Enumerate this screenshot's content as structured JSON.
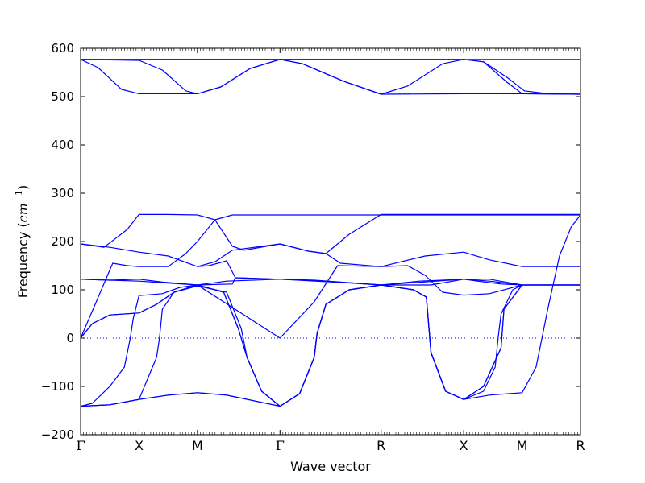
{
  "chart_data": {
    "type": "line",
    "title": "",
    "xlabel": "Wave vector",
    "ylabel": "Frequency",
    "ylabel_unit": "cm",
    "ylabel_unit_exponent": "−1",
    "ylim": [
      -200,
      600
    ],
    "yticks": [
      -200,
      -100,
      0,
      100,
      200,
      300,
      400,
      500,
      600
    ],
    "ytick_labels": [
      "−200",
      "−100",
      "0",
      "100",
      "200",
      "300",
      "400",
      "500",
      "600"
    ],
    "grid": false,
    "legend": "none",
    "line_color": "#0000ff",
    "zero_line": {
      "y": 0,
      "style": "dotted",
      "color": "#0000ff"
    },
    "kpoints": [
      {
        "label": "Γ",
        "x": 0
      },
      {
        "label": "X",
        "x": 1
      },
      {
        "label": "M",
        "x": 2
      },
      {
        "label": "Γ",
        "x": 3.4142
      },
      {
        "label": "R",
        "x": 5.1463
      },
      {
        "label": "X",
        "x": 6.5605
      },
      {
        "label": "M",
        "x": 7.5605
      },
      {
        "label": "R",
        "x": 8.5605
      }
    ],
    "series": [
      {
        "values": [
          [
            0,
            577
          ],
          [
            0.1,
            577
          ],
          [
            1,
            577
          ],
          [
            1.5,
            577
          ],
          [
            2,
            577
          ],
          [
            2.5,
            577
          ],
          [
            3.4142,
            577
          ],
          [
            4.2,
            577
          ],
          [
            5.1463,
            577
          ],
          [
            6,
            577
          ],
          [
            6.5605,
            577
          ],
          [
            7.5605,
            577
          ],
          [
            8.5605,
            577
          ]
        ]
      },
      {
        "values": [
          [
            0,
            577
          ],
          [
            0.3,
            560
          ],
          [
            0.7,
            515
          ],
          [
            1,
            506
          ],
          [
            1.5,
            506
          ],
          [
            2,
            506
          ],
          [
            2.4,
            520
          ],
          [
            2.9,
            558
          ],
          [
            3.4142,
            577
          ],
          [
            3.8,
            568
          ],
          [
            4.5,
            532
          ],
          [
            5.1463,
            505
          ],
          [
            5.6,
            522
          ],
          [
            6.2,
            568
          ],
          [
            6.5605,
            577
          ],
          [
            6.9,
            572
          ],
          [
            7.3,
            530
          ],
          [
            7.5605,
            506
          ],
          [
            8.5605,
            505
          ]
        ]
      },
      {
        "values": [
          [
            0,
            577
          ],
          [
            1,
            575
          ],
          [
            1.4,
            555
          ],
          [
            1.8,
            512
          ],
          [
            2,
            506
          ],
          [
            2.4,
            520
          ],
          [
            2.9,
            558
          ],
          [
            3.4142,
            577
          ],
          [
            3.8,
            568
          ],
          [
            4.5,
            532
          ],
          [
            5.1463,
            505
          ],
          [
            6.5605,
            506
          ],
          [
            7.5605,
            506
          ],
          [
            8.5605,
            505
          ]
        ]
      },
      {
        "values": [
          [
            0,
            577
          ],
          [
            0.1,
            577
          ],
          [
            1,
            577
          ],
          [
            1.5,
            577
          ],
          [
            2,
            577
          ],
          [
            2.5,
            577
          ],
          [
            3.4142,
            577
          ],
          [
            4.2,
            577
          ],
          [
            5.1463,
            577
          ],
          [
            6,
            577
          ],
          [
            6.5605,
            577
          ],
          [
            6.9,
            572
          ],
          [
            7.3,
            540
          ],
          [
            7.6,
            512
          ],
          [
            8,
            506
          ],
          [
            8.5605,
            505
          ]
        ]
      },
      {
        "values": [
          [
            0,
            0
          ],
          [
            0.25,
            70
          ],
          [
            0.55,
            155
          ],
          [
            0.8,
            150
          ],
          [
            1,
            148
          ],
          [
            1.5,
            148
          ],
          [
            1.8,
            175
          ],
          [
            2,
            200
          ],
          [
            2.3,
            245
          ],
          [
            2.6,
            255
          ],
          [
            3.4142,
            255
          ],
          [
            4.0,
            255
          ],
          [
            5.1463,
            255
          ],
          [
            6.5605,
            255
          ],
          [
            7.5605,
            255
          ],
          [
            8.5605,
            255
          ]
        ]
      },
      {
        "values": [
          [
            0,
            195
          ],
          [
            0.4,
            188
          ],
          [
            0.8,
            225
          ],
          [
            1,
            256
          ],
          [
            1.5,
            256
          ],
          [
            2,
            255
          ]
        ]
      },
      {
        "values": [
          [
            2,
            255
          ],
          [
            2.3,
            245
          ],
          [
            2.6,
            190
          ],
          [
            2.8,
            182
          ],
          [
            3.4142,
            195
          ],
          [
            3.9,
            180
          ],
          [
            4.2,
            175
          ],
          [
            4.6,
            215
          ],
          [
            5.1463,
            256
          ],
          [
            6.5605,
            256
          ],
          [
            7.5605,
            256
          ],
          [
            8.5605,
            256
          ]
        ]
      },
      {
        "values": [
          [
            0,
            195
          ],
          [
            0.5,
            188
          ],
          [
            1,
            178
          ],
          [
            1.5,
            170
          ],
          [
            2,
            148
          ],
          [
            2.3,
            158
          ],
          [
            2.6,
            182
          ],
          [
            3.4142,
            195
          ],
          [
            3.9,
            180
          ],
          [
            4.2,
            175
          ],
          [
            4.45,
            155
          ],
          [
            5.1463,
            148
          ],
          [
            5.9,
            170
          ],
          [
            6.5605,
            178
          ],
          [
            7.0,
            162
          ],
          [
            7.5605,
            148
          ],
          [
            8.5605,
            148
          ]
        ]
      },
      {
        "values": [
          [
            2,
            148
          ],
          [
            2.2,
            150
          ],
          [
            2.5,
            160
          ],
          [
            2.65,
            125
          ],
          [
            3.4142,
            122
          ],
          [
            4.5,
            115
          ],
          [
            5.1463,
            110
          ],
          [
            6.5605,
            122
          ],
          [
            7.0,
            122
          ],
          [
            7.5605,
            110
          ],
          [
            8.5605,
            110
          ]
        ]
      },
      {
        "values": [
          [
            0,
            122
          ],
          [
            0.5,
            120
          ],
          [
            1,
            118
          ],
          [
            1.5,
            114
          ],
          [
            2,
            110
          ],
          [
            2.5,
            118
          ],
          [
            3.4142,
            122
          ],
          [
            4.2,
            118
          ],
          [
            5.1463,
            110
          ],
          [
            5.8,
            118
          ],
          [
            6.5605,
            122
          ],
          [
            7.0,
            118
          ],
          [
            7.5605,
            110
          ],
          [
            8.5605,
            110
          ]
        ]
      },
      {
        "values": [
          [
            0,
            122
          ],
          [
            0.5,
            120
          ],
          [
            1,
            122
          ],
          [
            1.4,
            116
          ],
          [
            2,
            110
          ],
          [
            2.6,
            112
          ],
          [
            2.65,
            125
          ],
          [
            3.4142,
            122
          ],
          [
            4.0,
            120
          ],
          [
            5.1463,
            110
          ],
          [
            6.0,
            110
          ],
          [
            6.5605,
            122
          ],
          [
            6.8,
            118
          ],
          [
            7.2,
            112
          ],
          [
            7.5605,
            110
          ],
          [
            8.5605,
            110
          ]
        ]
      },
      {
        "values": [
          [
            0,
            0
          ],
          [
            0.2,
            30
          ],
          [
            0.5,
            48
          ],
          [
            1,
            52
          ],
          [
            1.3,
            70
          ],
          [
            1.6,
            95
          ],
          [
            2,
            110
          ],
          [
            3.4142,
            0
          ],
          [
            4.0,
            75
          ],
          [
            4.4,
            150
          ],
          [
            5.1463,
            148
          ],
          [
            5.6,
            150
          ],
          [
            5.9,
            130
          ],
          [
            6.2,
            95
          ],
          [
            6.5605,
            89
          ],
          [
            7.0,
            92
          ],
          [
            7.5605,
            110
          ],
          [
            8.5605,
            110
          ]
        ]
      },
      {
        "values": [
          [
            0,
            0
          ],
          [
            0.2,
            30
          ],
          [
            0.5,
            48
          ],
          [
            1,
            52
          ],
          [
            1.3,
            70
          ],
          [
            1.6,
            95
          ],
          [
            2,
            110
          ],
          [
            2.45,
            95
          ],
          [
            2.7,
            20
          ],
          [
            2.85,
            -40
          ],
          [
            3.1,
            -110
          ],
          [
            3.4142,
            -141
          ],
          [
            3.75,
            -115
          ],
          [
            4.0,
            -40
          ],
          [
            4.05,
            10
          ],
          [
            4.2,
            70
          ],
          [
            4.6,
            100
          ],
          [
            5.1463,
            110
          ],
          [
            5.7,
            100
          ],
          [
            5.92,
            85
          ],
          [
            6.0,
            -30
          ],
          [
            6.25,
            -110
          ],
          [
            6.5605,
            -127
          ],
          [
            6.9,
            -100
          ],
          [
            7.2,
            -20
          ],
          [
            7.25,
            60
          ],
          [
            7.5605,
            110
          ]
        ]
      },
      {
        "values": [
          [
            0,
            -141
          ],
          [
            0.2,
            -135
          ],
          [
            0.5,
            -100
          ],
          [
            0.75,
            -60
          ],
          [
            0.85,
            0
          ],
          [
            0.9,
            40
          ],
          [
            1,
            88
          ],
          [
            1.4,
            92
          ],
          [
            1.7,
            105
          ],
          [
            2,
            110
          ],
          [
            2.45,
            95
          ],
          [
            2.7,
            20
          ],
          [
            2.85,
            -40
          ],
          [
            3.1,
            -110
          ],
          [
            3.4142,
            -141
          ],
          [
            3.75,
            -115
          ],
          [
            4.0,
            -40
          ],
          [
            4.05,
            10
          ],
          [
            4.2,
            70
          ],
          [
            4.6,
            100
          ],
          [
            5.1463,
            110
          ],
          [
            5.7,
            100
          ],
          [
            5.92,
            85
          ],
          [
            6.0,
            -30
          ],
          [
            6.25,
            -110
          ],
          [
            6.5605,
            -127
          ],
          [
            6.9,
            -100
          ],
          [
            7.2,
            -20
          ],
          [
            7.25,
            60
          ],
          [
            7.5605,
            110
          ]
        ]
      },
      {
        "values": [
          [
            0,
            -141
          ],
          [
            0.5,
            -138
          ],
          [
            1,
            -127
          ],
          [
            1.3,
            -40
          ],
          [
            1.35,
            0
          ],
          [
            1.4,
            60
          ],
          [
            1.6,
            95
          ],
          [
            2,
            108
          ],
          [
            2.5,
            95
          ],
          [
            2.75,
            20
          ],
          [
            2.85,
            -40
          ],
          [
            3.1,
            -110
          ],
          [
            3.4142,
            -141
          ],
          [
            3.75,
            -115
          ],
          [
            4.0,
            -40
          ],
          [
            4.05,
            10
          ],
          [
            4.2,
            70
          ],
          [
            4.6,
            100
          ],
          [
            5.1463,
            110
          ],
          [
            5.7,
            100
          ],
          [
            5.92,
            85
          ],
          [
            6.0,
            -30
          ],
          [
            6.25,
            -110
          ],
          [
            6.5605,
            -127
          ],
          [
            6.9,
            -110
          ],
          [
            7.1,
            -60
          ],
          [
            7.15,
            0
          ],
          [
            7.2,
            50
          ],
          [
            7.4,
            100
          ],
          [
            7.5605,
            110
          ]
        ]
      },
      {
        "values": [
          [
            0,
            -141
          ],
          [
            0.5,
            -138
          ],
          [
            1,
            -127
          ],
          [
            1.5,
            -118
          ],
          [
            2,
            -113
          ],
          [
            2.5,
            -118
          ],
          [
            3.4142,
            -141
          ],
          [
            3.75,
            -115
          ],
          [
            4.0,
            -40
          ],
          [
            4.05,
            10
          ],
          [
            4.2,
            70
          ],
          [
            4.6,
            100
          ],
          [
            5.1463,
            110
          ],
          [
            5.7,
            100
          ],
          [
            5.92,
            85
          ],
          [
            6.0,
            -30
          ],
          [
            6.25,
            -110
          ],
          [
            6.5605,
            -127
          ],
          [
            7.0,
            -118
          ],
          [
            7.5605,
            -113
          ],
          [
            7.8,
            -60
          ],
          [
            7.9,
            0
          ],
          [
            8.0,
            60
          ],
          [
            8.2,
            170
          ],
          [
            8.4,
            230
          ],
          [
            8.5605,
            255
          ]
        ]
      },
      {
        "values": [
          [
            0,
            -141
          ],
          [
            0.5,
            -138
          ],
          [
            1,
            -127
          ],
          [
            1.5,
            -118
          ],
          [
            2,
            -113
          ],
          [
            2.5,
            -118
          ],
          [
            3.4142,
            -141
          ]
        ]
      }
    ]
  }
}
